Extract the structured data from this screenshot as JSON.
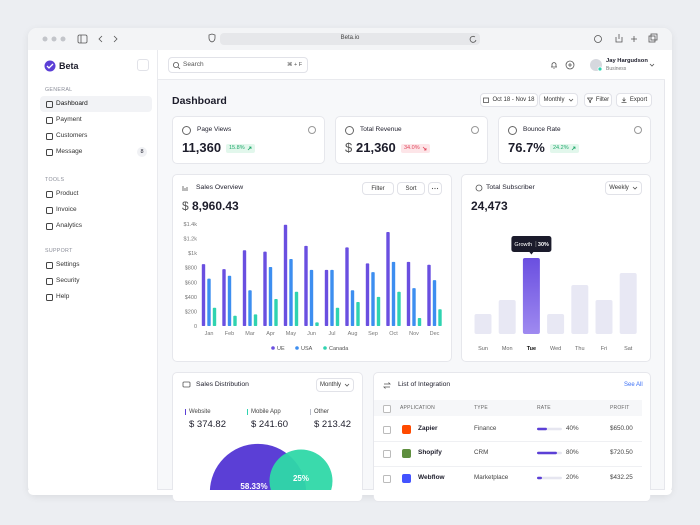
{
  "browser": {
    "url": "Beta.io"
  },
  "sidebar": {
    "brand": "Beta",
    "active": "Dashboard",
    "sections": [
      {
        "title": "GENERAL",
        "items": [
          {
            "label": "Dashboard"
          },
          {
            "label": "Payment"
          },
          {
            "label": "Customers"
          },
          {
            "label": "Message",
            "badge": "8"
          }
        ]
      },
      {
        "title": "TOOLS",
        "items": [
          {
            "label": "Product"
          },
          {
            "label": "Invoice"
          },
          {
            "label": "Analytics"
          }
        ]
      },
      {
        "title": "SUPPORT",
        "items": [
          {
            "label": "Settings"
          },
          {
            "label": "Security"
          },
          {
            "label": "Help"
          }
        ]
      }
    ]
  },
  "topbar": {
    "search": "Search",
    "shortcut": "⌘ + F",
    "user": {
      "name": "Jay Hargudson",
      "role": "Business"
    }
  },
  "header": {
    "title": "Dashboard",
    "date_range": "Oct 18 - Nov 18",
    "period": "Monthly",
    "filter": "Filter",
    "export": "Export"
  },
  "stats": [
    {
      "label": "Page Views",
      "value": "11,360",
      "change": "15.8%",
      "trend": "up"
    },
    {
      "label": "Total Revenue",
      "currency": "$",
      "value": "21,360",
      "change": "34.0%",
      "trend": "down"
    },
    {
      "label": "Bounce Rate",
      "value": "76.7%",
      "change": "24.2%",
      "trend": "up"
    }
  ],
  "chart_data": [
    {
      "type": "bar",
      "title": "Sales Overview",
      "currency": "$",
      "total": "8,960.43",
      "buttons": [
        "Filter",
        "Sort"
      ],
      "categories": [
        "Jan",
        "Feb",
        "Mar",
        "Apr",
        "May",
        "Jun",
        "Jul",
        "Aug",
        "Sep",
        "Oct",
        "Nov",
        "Dec"
      ],
      "series": [
        {
          "name": "UE",
          "color": "#6a4fe0",
          "values": [
            850,
            780,
            1040,
            1020,
            1390,
            1100,
            770,
            1080,
            860,
            1290,
            880,
            840
          ]
        },
        {
          "name": "USA",
          "color": "#3d8ef0",
          "values": [
            650,
            690,
            490,
            810,
            920,
            770,
            770,
            490,
            740,
            880,
            520,
            630
          ]
        },
        {
          "name": "Canada",
          "color": "#2fd3b0",
          "values": [
            250,
            140,
            160,
            370,
            470,
            50,
            250,
            330,
            400,
            470,
            110,
            230
          ]
        }
      ],
      "ylim": [
        0,
        1400
      ],
      "yticks": [
        0,
        {
          "value": 200,
          "label": "$200"
        },
        {
          "value": 400,
          "label": "$400"
        },
        {
          "value": 600,
          "label": "$600"
        },
        {
          "value": 800,
          "label": "$800"
        },
        {
          "value": 1000,
          "label": "$1k"
        },
        {
          "value": 1200,
          "label": "$1.2k"
        },
        {
          "value": 1400,
          "label": "$1.4k"
        }
      ],
      "grid": false
    },
    {
      "type": "bar",
      "title": "Total Subscriber",
      "total": "24,473",
      "period": "Weekly",
      "categories": [
        "Sun",
        "Mon",
        "Tue",
        "Wed",
        "Thu",
        "Fri",
        "Sat"
      ],
      "values": [
        20,
        34,
        76,
        20,
        49,
        34,
        61
      ],
      "color": "#e8e8f4",
      "highlight": "Tue",
      "highlight_color": "#6a4fe0",
      "annotation": {
        "label": "Growth",
        "value": "30%"
      }
    }
  ],
  "sales_distribution": {
    "title": "Sales Distribution",
    "period": "Monthly",
    "items": [
      {
        "name": "Website",
        "value": "$ 374.82",
        "color": "#5b3fd6"
      },
      {
        "name": "Mobile App",
        "value": "$ 241.60",
        "color": "#2fd3b0"
      },
      {
        "name": "Other",
        "value": "$ 213.42",
        "color": "#b9bcc8"
      }
    ],
    "pie": [
      {
        "value": 58.33,
        "label": "58.33%",
        "color": "#5b3fd6"
      },
      {
        "value": 25,
        "label": "25%",
        "color": "#2fd8a8"
      }
    ]
  },
  "integrations": {
    "title": "List of Integration",
    "link": "See All",
    "columns": [
      "APPLICATION",
      "TYPE",
      "RATE",
      "PROFIT"
    ],
    "rows": [
      {
        "name": "Zapier",
        "type": "Finance",
        "rate": {
          "value": 40,
          "label": "40%"
        },
        "profit": "$650.00"
      },
      {
        "name": "Shopify",
        "type": "CRM",
        "rate": {
          "value": 80,
          "label": "80%"
        },
        "profit": "$720.50"
      },
      {
        "name": "Webflow",
        "type": "Marketplace",
        "rate": {
          "value": 20,
          "label": "20%"
        },
        "profit": "$432.25"
      }
    ]
  }
}
